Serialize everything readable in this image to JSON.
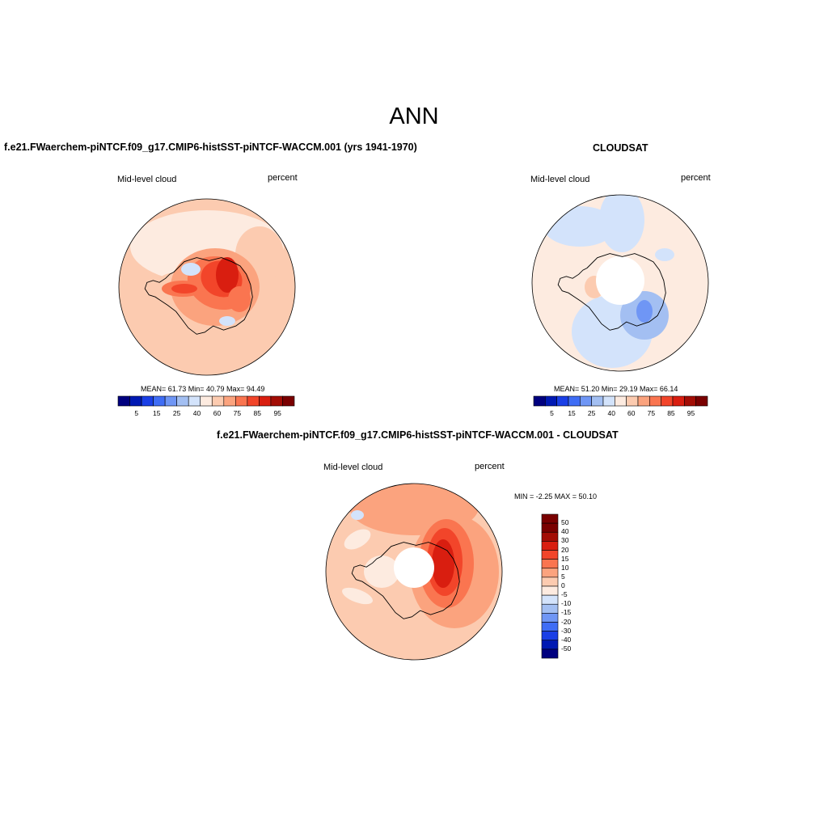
{
  "figure": {
    "title": "ANN"
  },
  "palette": [
    "#00007f",
    "#0019b3",
    "#1a3fe6",
    "#3f6df5",
    "#6f96f5",
    "#a3bff2",
    "#d3e3fb",
    "#fdebe0",
    "#fccbb0",
    "#fba37e",
    "#fa7550",
    "#f2452a",
    "#d91e10",
    "#a30d05",
    "#7a0000"
  ],
  "diff_palette": [
    "#7a0000",
    "#a30d05",
    "#d91e10",
    "#f2452a",
    "#fa7550",
    "#fba37e",
    "#fccbb0",
    "#fdebe0",
    "#d3e3fb",
    "#a3bff2",
    "#6f96f5",
    "#3f6df5",
    "#1a3fe6",
    "#0019b3",
    "#00007f"
  ],
  "chart_data": [
    {
      "type": "heatmap",
      "projection": "south-polar-stereographic",
      "title": "f.e21.FWaerchem-piNTCF.f09_g17.CMIP6-histSST-piNTCF-WACCM.001 (yrs 1941-1970)",
      "left_label": "Mid-level cloud",
      "right_label": "percent",
      "stats": "MEAN=  61.73  Min=  40.79  Max=  94.49",
      "mean": 61.73,
      "min": 40.79,
      "max": 94.49,
      "levels": [
        5,
        15,
        25,
        40,
        60,
        75,
        85,
        95
      ],
      "colorbar_labels": [
        "5",
        "15",
        "25",
        "40",
        "60",
        "75",
        "85",
        "95"
      ],
      "colorbar_orientation": "horizontal"
    },
    {
      "type": "heatmap",
      "projection": "south-polar-stereographic",
      "title": "CLOUDSAT",
      "left_label": "Mid-level cloud",
      "right_label": "percent",
      "stats": "MEAN=  51.20  Min=  29.19  Max=  66.14",
      "mean": 51.2,
      "min": 29.19,
      "max": 66.14,
      "levels": [
        5,
        15,
        25,
        40,
        60,
        75,
        85,
        95
      ],
      "colorbar_labels": [
        "5",
        "15",
        "25",
        "40",
        "60",
        "75",
        "85",
        "95"
      ],
      "colorbar_orientation": "horizontal"
    },
    {
      "type": "heatmap",
      "projection": "south-polar-stereographic",
      "title": "f.e21.FWaerchem-piNTCF.f09_g17.CMIP6-histSST-piNTCF-WACCM.001 - CLOUDSAT",
      "left_label": "Mid-level cloud",
      "right_label": "percent",
      "stats": "MIN =  -2.25 MAX =  50.10",
      "min": -2.25,
      "max": 50.1,
      "levels": [
        50,
        40,
        30,
        20,
        15,
        10,
        5,
        0,
        -5,
        -10,
        -15,
        -20,
        -30,
        -40,
        -50
      ],
      "colorbar_labels": [
        "50",
        "40",
        "30",
        "20",
        "15",
        "10",
        "5",
        "0",
        "-5",
        "-10",
        "-15",
        "-20",
        "-30",
        "-40",
        "-50"
      ],
      "colorbar_orientation": "vertical"
    }
  ]
}
